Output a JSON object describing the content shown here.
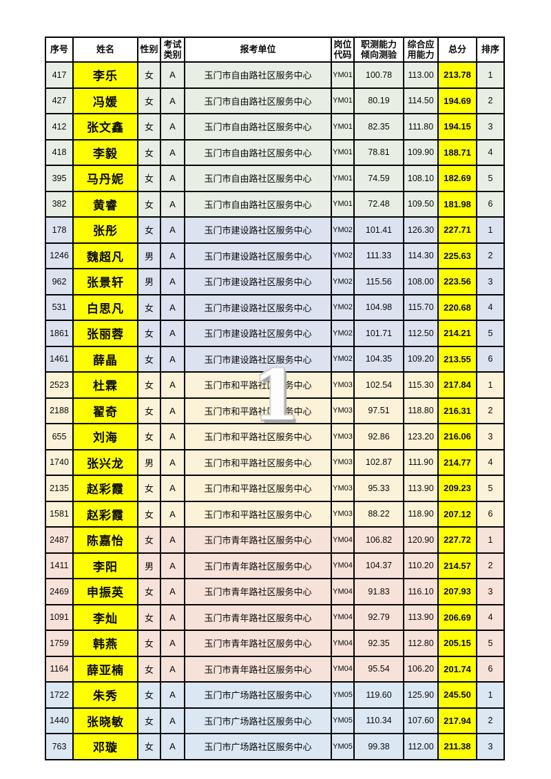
{
  "page": {
    "watermark": "1"
  },
  "colors": {
    "section_ym01": "#e8eee4",
    "section_ym02": "#dde2f1",
    "section_ym03": "#fcf2d8",
    "section_ym04": "#f7e2d9",
    "section_ym05": "#dbe7f3",
    "highlight_yellow": "#ffff00",
    "border": "#000000"
  },
  "table": {
    "headers": [
      "序号",
      "姓名",
      "性别",
      "考试\n类别",
      "报考单位",
      "岗位\n代码",
      "职测能力\n倾向测验",
      "综合应\n用能力",
      "总分",
      "排序"
    ],
    "rows": [
      {
        "no": "417",
        "name": "李乐",
        "gender": "女",
        "category": "A",
        "unit": "玉门市自由路社区服务中心",
        "code": "YM01",
        "aptitude": "100.78",
        "comprehensive": "113.00",
        "total": "213.78",
        "rank": "1",
        "section": "section_ym01"
      },
      {
        "no": "427",
        "name": "冯媛",
        "gender": "女",
        "category": "A",
        "unit": "玉门市自由路社区服务中心",
        "code": "YM01",
        "aptitude": "80.19",
        "comprehensive": "114.50",
        "total": "194.69",
        "rank": "2",
        "section": "section_ym01"
      },
      {
        "no": "412",
        "name": "张文鑫",
        "gender": "女",
        "category": "A",
        "unit": "玉门市自由路社区服务中心",
        "code": "YM01",
        "aptitude": "82.35",
        "comprehensive": "111.80",
        "total": "194.15",
        "rank": "3",
        "section": "section_ym01"
      },
      {
        "no": "418",
        "name": "李毅",
        "gender": "女",
        "category": "A",
        "unit": "玉门市自由路社区服务中心",
        "code": "YM01",
        "aptitude": "78.81",
        "comprehensive": "109.90",
        "total": "188.71",
        "rank": "4",
        "section": "section_ym01"
      },
      {
        "no": "395",
        "name": "马丹妮",
        "gender": "女",
        "category": "A",
        "unit": "玉门市自由路社区服务中心",
        "code": "YM01",
        "aptitude": "74.59",
        "comprehensive": "108.10",
        "total": "182.69",
        "rank": "5",
        "section": "section_ym01"
      },
      {
        "no": "382",
        "name": "黄睿",
        "gender": "女",
        "category": "A",
        "unit": "玉门市自由路社区服务中心",
        "code": "YM01",
        "aptitude": "72.48",
        "comprehensive": "109.50",
        "total": "181.98",
        "rank": "6",
        "section": "section_ym01"
      },
      {
        "no": "178",
        "name": "张彤",
        "gender": "女",
        "category": "A",
        "unit": "玉门市建设路社区服务中心",
        "code": "YM02",
        "aptitude": "101.41",
        "comprehensive": "126.30",
        "total": "227.71",
        "rank": "1",
        "section": "section_ym02"
      },
      {
        "no": "1246",
        "name": "魏超凡",
        "gender": "男",
        "category": "A",
        "unit": "玉门市建设路社区服务中心",
        "code": "YM02",
        "aptitude": "111.33",
        "comprehensive": "114.30",
        "total": "225.63",
        "rank": "2",
        "section": "section_ym02"
      },
      {
        "no": "962",
        "name": "张景轩",
        "gender": "男",
        "category": "A",
        "unit": "玉门市建设路社区服务中心",
        "code": "YM02",
        "aptitude": "115.56",
        "comprehensive": "108.00",
        "total": "223.56",
        "rank": "3",
        "section": "section_ym02"
      },
      {
        "no": "531",
        "name": "白思凡",
        "gender": "女",
        "category": "A",
        "unit": "玉门市建设路社区服务中心",
        "code": "YM02",
        "aptitude": "104.98",
        "comprehensive": "115.70",
        "total": "220.68",
        "rank": "4",
        "section": "section_ym02"
      },
      {
        "no": "1861",
        "name": "张丽蓉",
        "gender": "女",
        "category": "A",
        "unit": "玉门市建设路社区服务中心",
        "code": "YM02",
        "aptitude": "101.71",
        "comprehensive": "112.50",
        "total": "214.21",
        "rank": "5",
        "section": "section_ym02"
      },
      {
        "no": "1461",
        "name": "薛晶",
        "gender": "女",
        "category": "A",
        "unit": "玉门市建设路社区服务中心",
        "code": "YM02",
        "aptitude": "104.35",
        "comprehensive": "109.20",
        "total": "213.55",
        "rank": "6",
        "section": "section_ym02"
      },
      {
        "no": "2523",
        "name": "杜霖",
        "gender": "女",
        "category": "A",
        "unit": "玉门市和平路社区服务中心",
        "code": "YM03",
        "aptitude": "102.54",
        "comprehensive": "115.30",
        "total": "217.84",
        "rank": "1",
        "section": "section_ym03"
      },
      {
        "no": "2188",
        "name": "翟奇",
        "gender": "女",
        "category": "A",
        "unit": "玉门市和平路社区服务中心",
        "code": "YM03",
        "aptitude": "97.51",
        "comprehensive": "118.80",
        "total": "216.31",
        "rank": "2",
        "section": "section_ym03"
      },
      {
        "no": "655",
        "name": "刘海",
        "gender": "女",
        "category": "A",
        "unit": "玉门市和平路社区服务中心",
        "code": "YM03",
        "aptitude": "92.86",
        "comprehensive": "123.20",
        "total": "216.06",
        "rank": "3",
        "section": "section_ym03"
      },
      {
        "no": "1740",
        "name": "张兴龙",
        "gender": "男",
        "category": "A",
        "unit": "玉门市和平路社区服务中心",
        "code": "YM03",
        "aptitude": "102.87",
        "comprehensive": "111.90",
        "total": "214.77",
        "rank": "4",
        "section": "section_ym03"
      },
      {
        "no": "2135",
        "name": "赵彩霞",
        "gender": "女",
        "category": "A",
        "unit": "玉门市和平路社区服务中心",
        "code": "YM03",
        "aptitude": "95.33",
        "comprehensive": "113.90",
        "total": "209.23",
        "rank": "5",
        "section": "section_ym03"
      },
      {
        "no": "1581",
        "name": "赵彩霞",
        "gender": "女",
        "category": "A",
        "unit": "玉门市和平路社区服务中心",
        "code": "YM03",
        "aptitude": "88.22",
        "comprehensive": "118.90",
        "total": "207.12",
        "rank": "6",
        "section": "section_ym03"
      },
      {
        "no": "2487",
        "name": "陈嘉怡",
        "gender": "女",
        "category": "A",
        "unit": "玉门市青年路社区服务中心",
        "code": "YM04",
        "aptitude": "106.82",
        "comprehensive": "120.90",
        "total": "227.72",
        "rank": "1",
        "section": "section_ym04"
      },
      {
        "no": "1411",
        "name": "李阳",
        "gender": "男",
        "category": "A",
        "unit": "玉门市青年路社区服务中心",
        "code": "YM04",
        "aptitude": "104.37",
        "comprehensive": "110.20",
        "total": "214.57",
        "rank": "2",
        "section": "section_ym04"
      },
      {
        "no": "2469",
        "name": "申振英",
        "gender": "女",
        "category": "A",
        "unit": "玉门市青年路社区服务中心",
        "code": "YM04",
        "aptitude": "91.83",
        "comprehensive": "116.10",
        "total": "207.93",
        "rank": "3",
        "section": "section_ym04"
      },
      {
        "no": "1091",
        "name": "李灿",
        "gender": "女",
        "category": "A",
        "unit": "玉门市青年路社区服务中心",
        "code": "YM04",
        "aptitude": "92.79",
        "comprehensive": "113.90",
        "total": "206.69",
        "rank": "4",
        "section": "section_ym04"
      },
      {
        "no": "1759",
        "name": "韩燕",
        "gender": "女",
        "category": "A",
        "unit": "玉门市青年路社区服务中心",
        "code": "YM04",
        "aptitude": "92.35",
        "comprehensive": "112.80",
        "total": "205.15",
        "rank": "5",
        "section": "section_ym04"
      },
      {
        "no": "1164",
        "name": "薛亚楠",
        "gender": "女",
        "category": "A",
        "unit": "玉门市青年路社区服务中心",
        "code": "YM04",
        "aptitude": "95.54",
        "comprehensive": "106.20",
        "total": "201.74",
        "rank": "6",
        "section": "section_ym04"
      },
      {
        "no": "1722",
        "name": "朱秀",
        "gender": "女",
        "category": "A",
        "unit": "玉门市广场路社区服务中心",
        "code": "YM05",
        "aptitude": "119.60",
        "comprehensive": "125.90",
        "total": "245.50",
        "rank": "1",
        "section": "section_ym05"
      },
      {
        "no": "1440",
        "name": "张晓敏",
        "gender": "女",
        "category": "A",
        "unit": "玉门市广场路社区服务中心",
        "code": "YM05",
        "aptitude": "110.34",
        "comprehensive": "107.60",
        "total": "217.94",
        "rank": "2",
        "section": "section_ym05"
      },
      {
        "no": "763",
        "name": "邓璇",
        "gender": "女",
        "category": "A",
        "unit": "玉门市广场路社区服务中心",
        "code": "YM05",
        "aptitude": "99.38",
        "comprehensive": "112.00",
        "total": "211.38",
        "rank": "3",
        "section": "section_ym05"
      }
    ]
  }
}
